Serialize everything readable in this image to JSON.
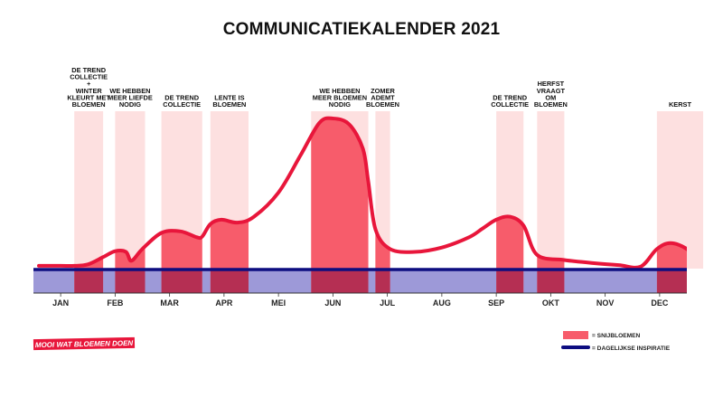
{
  "chart_data": {
    "type": "area",
    "title": "COMMUNICATIEKALENDER 2021",
    "months": [
      "JAN",
      "FEB",
      "MAR",
      "APR",
      "MEI",
      "JUN",
      "JUL",
      "AUG",
      "SEP",
      "OKT",
      "NOV",
      "DEC"
    ],
    "campaigns": [
      {
        "lines": [
          "DE TREND",
          "COLLECTIE",
          "+",
          "WINTER",
          "KLEURT MET",
          "BLOEMEN"
        ],
        "start": 0.25,
        "end": 0.78,
        "fill_end": 0.78
      },
      {
        "lines": [
          "WE HEBBEN",
          "MEER LIEFDE",
          "NODIG"
        ],
        "start": 1.0,
        "end": 1.55,
        "fill_end": 1.55
      },
      {
        "lines": [
          "DE TREND",
          "COLLECTIE"
        ],
        "start": 1.85,
        "end": 2.6,
        "fill_end": 2.6
      },
      {
        "lines": [
          "LENTE IS",
          "BLOEMEN"
        ],
        "start": 2.75,
        "end": 3.45,
        "fill_end": 3.45
      },
      {
        "lines": [
          "WE HEBBEN",
          "MEER BLOEMEN",
          "NODIG"
        ],
        "start": 4.6,
        "end": 5.65,
        "fill_end": 5.65
      },
      {
        "lines": [
          "ZOMER",
          "ADEMT",
          "BLOEMEN"
        ],
        "start": 5.78,
        "end": 6.05,
        "fill_end": 6.05
      },
      {
        "lines": [
          "DE TREND",
          "COLLECTIE"
        ],
        "start": 8.0,
        "end": 8.5,
        "fill_end": 8.5
      },
      {
        "lines": [
          "HERFST",
          "VRAAGT",
          "OM",
          "BLOEMEN"
        ],
        "start": 8.75,
        "end": 9.25,
        "fill_end": 9.25
      },
      {
        "lines": [
          "KERST"
        ],
        "start": 10.95,
        "end": 11.8,
        "fill_end": 11.8
      }
    ],
    "snijbloemen_curve": [
      [
        -0.4,
        0.05
      ],
      [
        0.0,
        0.05
      ],
      [
        0.25,
        0.05
      ],
      [
        0.5,
        0.07
      ],
      [
        0.78,
        0.17
      ],
      [
        1.0,
        0.25
      ],
      [
        1.2,
        0.24
      ],
      [
        1.3,
        0.12
      ],
      [
        1.5,
        0.28
      ],
      [
        1.85,
        0.5
      ],
      [
        2.2,
        0.52
      ],
      [
        2.5,
        0.44
      ],
      [
        2.6,
        0.45
      ],
      [
        2.75,
        0.62
      ],
      [
        2.95,
        0.68
      ],
      [
        3.25,
        0.64
      ],
      [
        3.55,
        0.72
      ],
      [
        4.0,
        1.05
      ],
      [
        4.4,
        1.55
      ],
      [
        4.75,
        2.0
      ],
      [
        5.0,
        2.06
      ],
      [
        5.3,
        1.98
      ],
      [
        5.55,
        1.65
      ],
      [
        5.65,
        1.2
      ],
      [
        5.78,
        0.55
      ],
      [
        6.05,
        0.28
      ],
      [
        6.5,
        0.24
      ],
      [
        7.0,
        0.3
      ],
      [
        7.5,
        0.44
      ],
      [
        7.75,
        0.56
      ],
      [
        8.0,
        0.68
      ],
      [
        8.25,
        0.72
      ],
      [
        8.5,
        0.6
      ],
      [
        8.75,
        0.2
      ],
      [
        9.25,
        0.13
      ],
      [
        9.75,
        0.09
      ],
      [
        10.25,
        0.06
      ],
      [
        10.65,
        0.04
      ],
      [
        10.95,
        0.28
      ],
      [
        11.2,
        0.36
      ],
      [
        11.5,
        0.28
      ],
      [
        11.7,
        0.1
      ],
      [
        11.85,
        0.05
      ],
      [
        12.0,
        0.05
      ]
    ],
    "dagelijkse_inspiratie_level": 0,
    "legend": [
      {
        "label": "= SNIJBLOEMEN",
        "color": "#f75c6b",
        "kind": "box"
      },
      {
        "label": "= DAGELIJKSE INSPIRATIE",
        "color": "#0d0d80",
        "kind": "line"
      }
    ],
    "legend_position": "bottom-right",
    "colors": {
      "band": "#fde0e0",
      "area": "#f75c6b",
      "curve": "#e8163b",
      "inspiratie_line": "#0d0d80",
      "inspiratie_fill": "#9d99d8"
    }
  },
  "brand": {
    "text": "MOOI WAT BLOEMEN DOEN",
    "color": "#e8163b"
  }
}
